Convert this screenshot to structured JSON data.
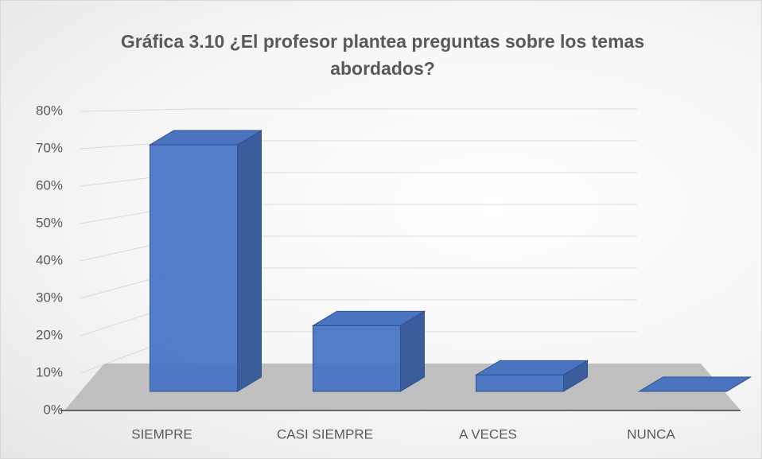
{
  "chart_data": {
    "type": "bar3d",
    "title": "Gráfica 3.10 ¿El profesor plantea preguntas sobre los temas abordados?",
    "categories": [
      "SIEMPRE",
      "CASI SIEMPRE",
      "A VECES",
      "NUNCA"
    ],
    "values": [
      75,
      20,
      5,
      0
    ],
    "color": "#4472c4",
    "ylim": [
      0,
      80
    ],
    "yticks": [
      {
        "value": 0,
        "label": "0%"
      },
      {
        "value": 10,
        "label": "10%"
      },
      {
        "value": 20,
        "label": "20%"
      },
      {
        "value": 30,
        "label": "30%"
      },
      {
        "value": 40,
        "label": "40%"
      },
      {
        "value": 50,
        "label": "50%"
      },
      {
        "value": 60,
        "label": "60%"
      },
      {
        "value": 70,
        "label": "70%"
      },
      {
        "value": 80,
        "label": "80%"
      }
    ],
    "grid": true
  }
}
